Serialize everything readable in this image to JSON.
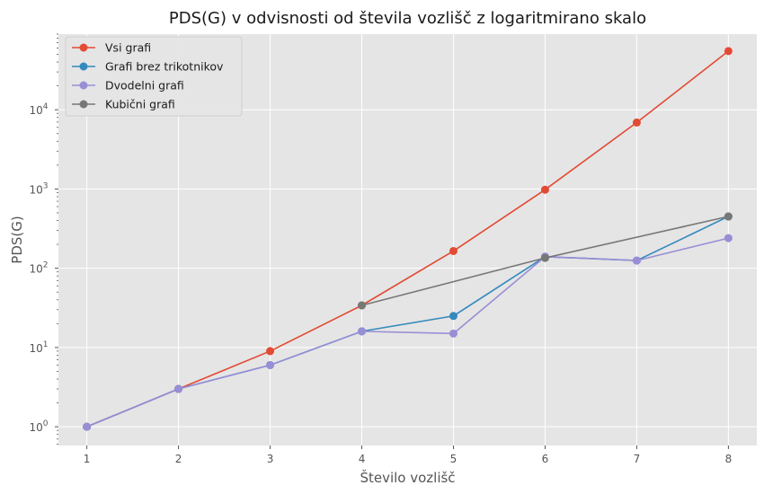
{
  "chart_data": {
    "type": "line",
    "title": "PDS(G) v odvisnosti od števila vozlišč z logaritmirano skalo",
    "xlabel": "Število vozlišč",
    "ylabel": "PDS(G)",
    "yscale": "log",
    "xlim": [
      0.69,
      8.31
    ],
    "ylim": [
      0.58,
      90000
    ],
    "xticks": [
      1,
      2,
      3,
      4,
      5,
      6,
      7,
      8
    ],
    "yticks": [
      1,
      10,
      100,
      1000,
      10000
    ],
    "ytick_labels": [
      {
        "base": "10",
        "exp": "0"
      },
      {
        "base": "10",
        "exp": "1"
      },
      {
        "base": "10",
        "exp": "2"
      },
      {
        "base": "10",
        "exp": "3"
      },
      {
        "base": "10",
        "exp": "4"
      }
    ],
    "grid": true,
    "legend_position": "upper-left",
    "series": [
      {
        "name": "Vsi grafi",
        "color": "#E24A33",
        "x": [
          1,
          2,
          3,
          4,
          5,
          6,
          7,
          8
        ],
        "y": [
          1,
          3,
          9,
          34,
          165,
          980,
          6900,
          55000
        ]
      },
      {
        "name": "Grafi brez trikotnikov",
        "color": "#348ABD",
        "x": [
          1,
          2,
          3,
          4,
          5,
          6,
          7,
          8
        ],
        "y": [
          1,
          3,
          6,
          16,
          25,
          140,
          125,
          450
        ]
      },
      {
        "name": "Dvodelni grafi",
        "color": "#988ED5",
        "x": [
          1,
          2,
          3,
          4,
          5,
          6,
          7,
          8
        ],
        "y": [
          1,
          3,
          6,
          16,
          15,
          140,
          125,
          240
        ]
      },
      {
        "name": "Kubični grafi",
        "color": "#777777",
        "x": [
          4,
          6,
          8
        ],
        "y": [
          34,
          135,
          450
        ]
      }
    ]
  }
}
